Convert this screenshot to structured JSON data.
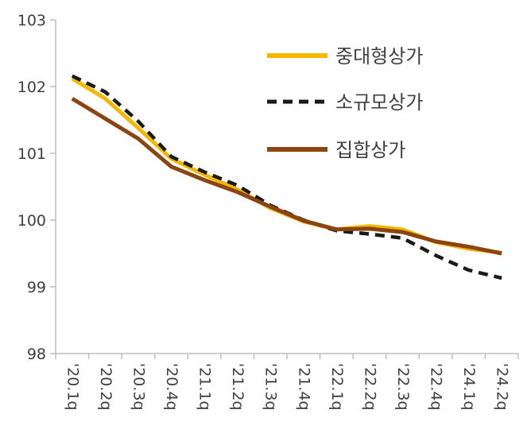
{
  "chart_data": {
    "type": "line",
    "title": "",
    "xlabel": "",
    "ylabel": "",
    "ylim": [
      98,
      103
    ],
    "yticks": [
      98,
      99,
      100,
      101,
      102,
      103
    ],
    "grid": false,
    "legend_position": "top-right",
    "categories": [
      "'20.1q",
      "'20.2q",
      "'20.3q",
      "'20.4q",
      "'21.1q",
      "'21.2q",
      "'21.3q",
      "'21.4q",
      "'22.1q",
      "'22.2q",
      "'22.3q",
      "'22.4q",
      "'24.1q",
      "'24.2q"
    ],
    "series": [
      {
        "name": "중대형상가",
        "color": "#F5B800",
        "style": "solid",
        "values": [
          102.12,
          101.82,
          101.38,
          100.92,
          100.68,
          100.46,
          100.18,
          99.98,
          99.86,
          99.91,
          99.86,
          99.67,
          99.57,
          99.51
        ]
      },
      {
        "name": "소규모상가",
        "color": "#1a1a1a",
        "style": "dashed",
        "values": [
          102.16,
          101.92,
          101.48,
          100.95,
          100.72,
          100.52,
          100.22,
          100.0,
          99.84,
          99.79,
          99.73,
          99.47,
          99.25,
          99.13
        ]
      },
      {
        "name": "집합상가",
        "color": "#8B4513",
        "style": "solid",
        "values": [
          101.82,
          101.52,
          101.22,
          100.8,
          100.6,
          100.42,
          100.2,
          99.99,
          99.86,
          99.87,
          99.82,
          99.68,
          99.6,
          99.5
        ]
      }
    ]
  }
}
